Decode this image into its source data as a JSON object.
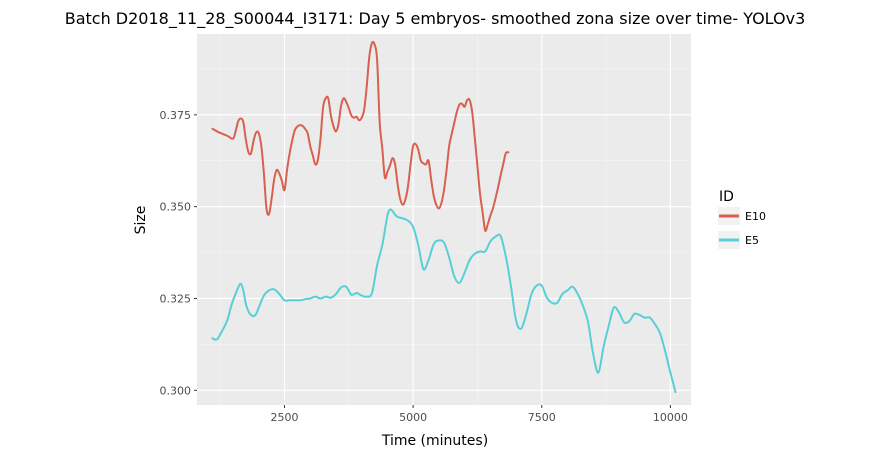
{
  "chart_data": {
    "type": "line",
    "title": "Batch D2018_11_28_S00044_I3171: Day 5 embryos- smoothed zona size over time- YOLOv3",
    "xlabel": "Time (minutes)",
    "ylabel": "Size",
    "xlim": [
      800,
      10400
    ],
    "ylim": [
      0.296,
      0.397
    ],
    "x_ticks": [
      2500,
      5000,
      7500,
      10000
    ],
    "x_tick_labels": [
      "2500",
      "5000",
      "7500",
      "10000"
    ],
    "y_ticks": [
      0.3,
      0.325,
      0.35,
      0.375
    ],
    "y_tick_labels": [
      "0.300",
      "0.325",
      "0.350",
      "0.375"
    ],
    "grid": true,
    "legend": {
      "title": "ID",
      "position": "right"
    },
    "series": [
      {
        "name": "E10",
        "color": "#d9604f",
        "x": [
          1100,
          1200,
          1300,
          1400,
          1500,
          1550,
          1600,
          1650,
          1700,
          1750,
          1800,
          1850,
          1900,
          1950,
          2000,
          2050,
          2100,
          2150,
          2200,
          2250,
          2300,
          2350,
          2400,
          2450,
          2500,
          2550,
          2600,
          2650,
          2700,
          2750,
          2800,
          2850,
          2900,
          2950,
          3000,
          3050,
          3100,
          3150,
          3200,
          3250,
          3300,
          3350,
          3400,
          3450,
          3500,
          3550,
          3600,
          3650,
          3700,
          3750,
          3800,
          3850,
          3900,
          3950,
          4000,
          4050,
          4100,
          4150,
          4200,
          4250,
          4300,
          4350,
          4400,
          4450,
          4500,
          4550,
          4600,
          4650,
          4700,
          4750,
          4800,
          4850,
          4900,
          4950,
          5000,
          5050,
          5100,
          5150,
          5200,
          5250,
          5300,
          5350,
          5400,
          5450,
          5500,
          5550,
          5600,
          5650,
          5700,
          5750,
          5800,
          5850,
          5900,
          5950,
          6000,
          6050,
          6100,
          6150,
          6200,
          6250,
          6300,
          6350,
          6400,
          6450,
          6500,
          6550,
          6600,
          6650,
          6700,
          6750,
          6800,
          6850
        ],
        "y": [
          0.3712,
          0.3704,
          0.3698,
          0.3692,
          0.3685,
          0.3705,
          0.3732,
          0.374,
          0.373,
          0.3682,
          0.3648,
          0.3645,
          0.368,
          0.3702,
          0.37,
          0.3665,
          0.359,
          0.3495,
          0.348,
          0.3522,
          0.3575,
          0.36,
          0.359,
          0.357,
          0.3545,
          0.36,
          0.3645,
          0.368,
          0.3708,
          0.3718,
          0.3722,
          0.372,
          0.3712,
          0.37,
          0.3665,
          0.364,
          0.3615,
          0.3628,
          0.3685,
          0.377,
          0.3795,
          0.3795,
          0.375,
          0.372,
          0.3705,
          0.3725,
          0.3775,
          0.3795,
          0.3785,
          0.3768,
          0.3748,
          0.3742,
          0.3745,
          0.3735,
          0.3742,
          0.3765,
          0.383,
          0.391,
          0.3945,
          0.3942,
          0.39,
          0.373,
          0.366,
          0.358,
          0.3595,
          0.3612,
          0.3632,
          0.3615,
          0.356,
          0.352,
          0.3505,
          0.352,
          0.3555,
          0.3615,
          0.3665,
          0.367,
          0.3655,
          0.3625,
          0.3618,
          0.3615,
          0.3625,
          0.3575,
          0.353,
          0.3505,
          0.3495,
          0.351,
          0.3545,
          0.36,
          0.3665,
          0.3698,
          0.3728,
          0.3758,
          0.3778,
          0.378,
          0.3772,
          0.379,
          0.379,
          0.3755,
          0.3685,
          0.361,
          0.3535,
          0.3485,
          0.3435,
          0.3452,
          0.3475,
          0.3495,
          0.3522,
          0.3552,
          0.3585,
          0.3615,
          0.3645,
          0.3648
        ]
      },
      {
        "name": "E5",
        "color": "#58cfd6",
        "x": [
          1100,
          1150,
          1200,
          1250,
          1300,
          1350,
          1400,
          1450,
          1500,
          1550,
          1600,
          1650,
          1700,
          1750,
          1800,
          1850,
          1900,
          1950,
          2000,
          2100,
          2200,
          2300,
          2400,
          2500,
          2600,
          2700,
          2800,
          2900,
          3000,
          3100,
          3200,
          3300,
          3400,
          3500,
          3600,
          3700,
          3800,
          3900,
          4000,
          4100,
          4200,
          4300,
          4400,
          4500,
          4550,
          4600,
          4650,
          4700,
          4800,
          4900,
          5000,
          5100,
          5200,
          5300,
          5400,
          5500,
          5600,
          5700,
          5800,
          5900,
          6000,
          6100,
          6200,
          6300,
          6400,
          6500,
          6600,
          6700,
          6800,
          6900,
          7000,
          7100,
          7200,
          7300,
          7400,
          7500,
          7600,
          7700,
          7800,
          7900,
          8000,
          8100,
          8200,
          8300,
          8400,
          8500,
          8600,
          8700,
          8800,
          8900,
          9000,
          9100,
          9200,
          9300,
          9400,
          9500,
          9600,
          9700,
          9800,
          9900,
          10000,
          10100
        ],
        "y": [
          0.3142,
          0.3138,
          0.314,
          0.3152,
          0.3165,
          0.3178,
          0.3195,
          0.3222,
          0.3245,
          0.3262,
          0.328,
          0.329,
          0.3272,
          0.3235,
          0.3215,
          0.3205,
          0.3202,
          0.3208,
          0.3225,
          0.3258,
          0.3272,
          0.3275,
          0.3262,
          0.3245,
          0.3245,
          0.3245,
          0.3245,
          0.3248,
          0.325,
          0.3255,
          0.325,
          0.3255,
          0.3252,
          0.3262,
          0.328,
          0.3282,
          0.326,
          0.3265,
          0.3258,
          0.3255,
          0.3265,
          0.334,
          0.3395,
          0.3475,
          0.3492,
          0.3488,
          0.3478,
          0.3472,
          0.3468,
          0.3462,
          0.3445,
          0.3395,
          0.333,
          0.3355,
          0.3398,
          0.3408,
          0.3402,
          0.3362,
          0.331,
          0.3292,
          0.332,
          0.3355,
          0.3372,
          0.3378,
          0.3378,
          0.3405,
          0.3418,
          0.342,
          0.3365,
          0.3285,
          0.319,
          0.3168,
          0.3208,
          0.3262,
          0.3285,
          0.3285,
          0.3252,
          0.3238,
          0.3238,
          0.3262,
          0.3272,
          0.3282,
          0.3262,
          0.323,
          0.3185,
          0.3098,
          0.3048,
          0.3118,
          0.3175,
          0.3225,
          0.3212,
          0.3185,
          0.3188,
          0.3208,
          0.3205,
          0.3198,
          0.3198,
          0.318,
          0.3155,
          0.3105,
          0.3048,
          0.2995
        ]
      }
    ]
  }
}
